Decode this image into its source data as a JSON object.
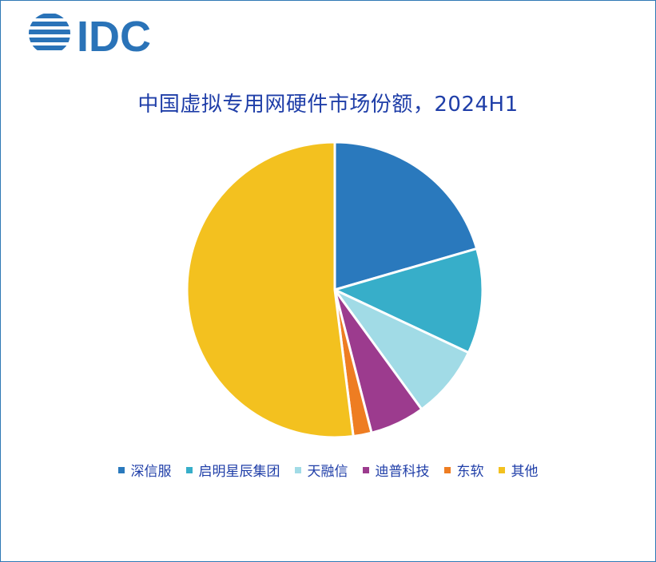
{
  "logo": {
    "text": "IDC",
    "color": "#2a73b8"
  },
  "chart_data": {
    "type": "pie",
    "title": "中国虚拟专用网硬件市场份额，2024H1",
    "legend_position": "bottom",
    "slices": [
      {
        "label": "深信服",
        "value": 20.5,
        "color": "#2a79bd"
      },
      {
        "label": "启明星辰集团",
        "value": 11.5,
        "color": "#37aec9"
      },
      {
        "label": "天融信",
        "value": 8.0,
        "color": "#a1dbe6"
      },
      {
        "label": "迪普科技",
        "value": 6.0,
        "color": "#9c3b8e"
      },
      {
        "label": "东软",
        "value": 2.0,
        "color": "#ee7d22"
      },
      {
        "label": "其他",
        "value": 52.0,
        "color": "#f3c11f"
      }
    ]
  }
}
